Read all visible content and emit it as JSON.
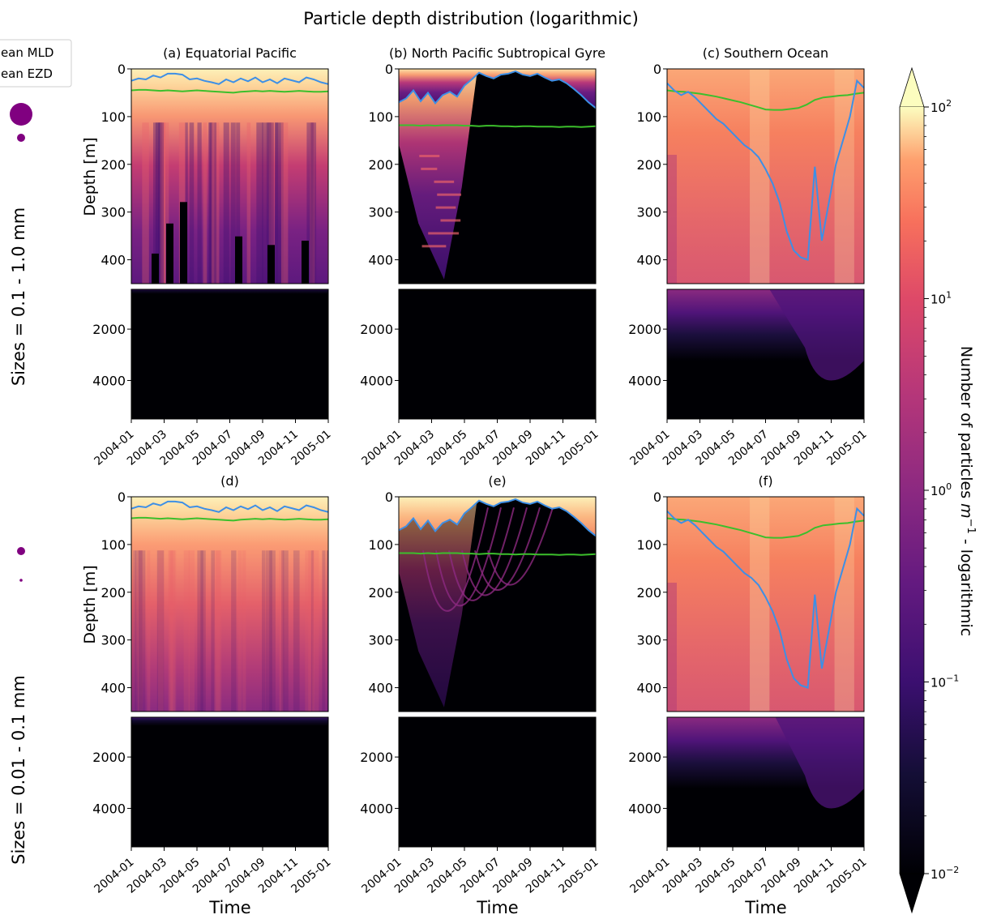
{
  "figure": {
    "title": "Particle depth distribution (logarithmic)",
    "legend": [
      {
        "label": "Mean MLD",
        "color": "#3d8fe6"
      },
      {
        "label": "Mean EZD",
        "color": "#3cbf2c"
      }
    ],
    "row_labels": [
      "Sizes = 0.1 - 1.0 mm",
      "Sizes = 0.01 - 0.1 mm"
    ],
    "ylabel": "Depth [m]",
    "xlabel": "Time",
    "colorbar": {
      "label": "Number of particles m^-1 - logarithmic",
      "label_parts": [
        "Number of particles ",
        "m",
        "−1",
        " - logarithmic"
      ],
      "scale": "log",
      "range": [
        0.01,
        100
      ],
      "ticks": [
        {
          "base": "10",
          "exp": "2",
          "value": 100
        },
        {
          "base": "10",
          "exp": "1",
          "value": 10
        },
        {
          "base": "10",
          "exp": "0",
          "value": 1
        },
        {
          "base": "10",
          "exp": "−1",
          "value": 0.1
        },
        {
          "base": "10",
          "exp": "−2",
          "value": 0.01
        }
      ],
      "extend": "both",
      "colormap": "magma"
    },
    "marker_color": "#800080"
  },
  "chart_data": {
    "type": "heatmap",
    "x_ticks": [
      "2004-01",
      "2004-03",
      "2004-05",
      "2004-07",
      "2004-09",
      "2004-11",
      "2005-01"
    ],
    "upper_yticks": [
      0,
      100,
      200,
      300,
      400
    ],
    "upper_ylim": [
      0,
      450
    ],
    "lower_yticks": [
      2000,
      4000
    ],
    "lower_ylim": [
      450,
      5500
    ],
    "panels": [
      {
        "title": "(a) Equatorial Pacific",
        "region": "Equatorial Pacific",
        "row": 0,
        "col": 0,
        "mld": [
          25,
          20,
          22,
          14,
          18,
          10,
          10,
          12,
          22,
          20,
          25,
          28,
          32,
          22,
          28,
          20,
          26,
          18,
          28,
          22,
          30,
          20,
          24,
          28,
          18,
          22,
          28,
          32
        ],
        "ezd": [
          45,
          44,
          44,
          45,
          46,
          45,
          46,
          47,
          46,
          45,
          46,
          47,
          48,
          49,
          50,
          48,
          47,
          46,
          47,
          46,
          47,
          48,
          47,
          46,
          47,
          48,
          48,
          47
        ],
        "lower_activity": "faint purple at top"
      },
      {
        "title": "(b) North Pacific Subtropical Gyre",
        "region": "North Pacific Subtropical Gyre",
        "row": 0,
        "col": 1,
        "mld": [
          70,
          62,
          45,
          68,
          50,
          72,
          55,
          48,
          58,
          35,
          22,
          8,
          15,
          20,
          12,
          10,
          5,
          12,
          15,
          10,
          18,
          25,
          22,
          30,
          42,
          55,
          70,
          82
        ],
        "ezd": [
          118,
          118,
          118,
          119,
          118,
          119,
          118,
          118,
          118,
          119,
          119,
          120,
          119,
          119,
          120,
          120,
          121,
          120,
          120,
          121,
          121,
          121,
          122,
          121,
          121,
          122,
          121,
          120
        ],
        "lower_activity": "none"
      },
      {
        "title": "(c) Southern Ocean",
        "region": "Southern Ocean",
        "row": 0,
        "col": 2,
        "mld": [
          30,
          45,
          55,
          48,
          60,
          75,
          90,
          105,
          115,
          130,
          145,
          160,
          170,
          185,
          210,
          240,
          280,
          340,
          380,
          395,
          400,
          205,
          360,
          280,
          200,
          150,
          100,
          25,
          40
        ],
        "ezd": [
          45,
          47,
          48,
          50,
          52,
          55,
          58,
          62,
          66,
          70,
          75,
          80,
          85,
          86,
          86,
          84,
          82,
          75,
          65,
          60,
          58,
          56,
          55,
          52,
          50
        ],
        "lower_activity": "strong purple from 2004-07"
      },
      {
        "title": "(d)",
        "region": "Equatorial Pacific",
        "row": 1,
        "col": 0,
        "mld": [
          25,
          20,
          22,
          14,
          18,
          10,
          10,
          12,
          22,
          20,
          25,
          28,
          32,
          22,
          28,
          20,
          26,
          18,
          28,
          22,
          30,
          20,
          24,
          28,
          18,
          22,
          28,
          32
        ],
        "ezd": [
          45,
          44,
          44,
          45,
          46,
          45,
          46,
          47,
          46,
          45,
          46,
          47,
          48,
          49,
          50,
          48,
          47,
          46,
          47,
          46,
          47,
          48,
          47,
          46,
          47,
          48,
          48,
          47
        ],
        "lower_activity": "moderate purple band at top"
      },
      {
        "title": "(e)",
        "region": "North Pacific Subtropical Gyre",
        "row": 1,
        "col": 1,
        "mld": [
          70,
          62,
          45,
          68,
          50,
          72,
          55,
          48,
          58,
          35,
          22,
          8,
          15,
          20,
          12,
          10,
          5,
          12,
          15,
          10,
          18,
          25,
          22,
          30,
          42,
          55,
          70,
          82
        ],
        "ezd": [
          118,
          118,
          118,
          119,
          118,
          119,
          118,
          118,
          118,
          119,
          119,
          120,
          119,
          119,
          120,
          120,
          121,
          120,
          120,
          121,
          121,
          121,
          122,
          121,
          121,
          122,
          121,
          120
        ],
        "lower_activity": "none"
      },
      {
        "title": "(f)",
        "region": "Southern Ocean",
        "row": 1,
        "col": 2,
        "mld": [
          30,
          45,
          55,
          48,
          60,
          75,
          90,
          105,
          115,
          130,
          145,
          160,
          170,
          185,
          210,
          240,
          280,
          340,
          380,
          395,
          400,
          205,
          360,
          280,
          200,
          150,
          100,
          25,
          40
        ],
        "ezd": [
          45,
          47,
          48,
          50,
          52,
          55,
          58,
          62,
          66,
          70,
          75,
          80,
          85,
          86,
          86,
          84,
          82,
          75,
          65,
          60,
          58,
          56,
          55,
          52,
          50
        ],
        "lower_activity": "strong purple throughout top"
      }
    ]
  }
}
